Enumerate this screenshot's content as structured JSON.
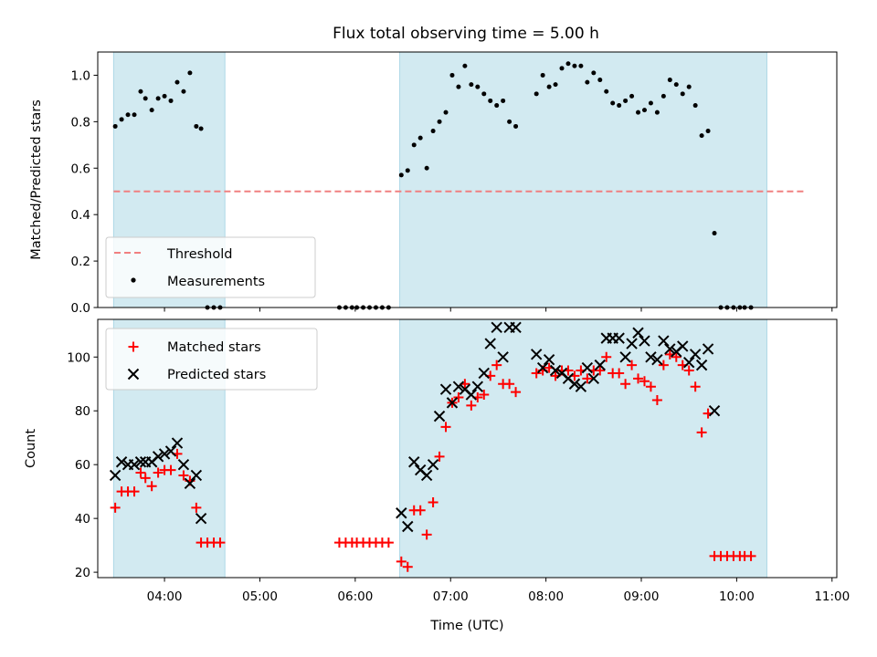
{
  "chart_data": {
    "title": "Flux total observing time = 5.00 h",
    "xlabel": "Time (UTC)",
    "x_ticks": [
      "04:00",
      "05:00",
      "06:00",
      "07:00",
      "08:00",
      "09:00",
      "10:00",
      "11:00"
    ],
    "xlim": [
      "03:18",
      "11:03"
    ],
    "shaded_intervals": [
      [
        "03:28",
        "04:38"
      ],
      [
        "06:28",
        "10:19"
      ]
    ],
    "colors": {
      "shade": "#add8e6",
      "threshold": "#f08080",
      "matched": "#ff0000",
      "predicted": "#000000"
    },
    "panels": [
      {
        "type": "scatter",
        "ylabel": "Matched/Predicted stars",
        "ylim": [
          0,
          1.1
        ],
        "y_ticks": [
          "0.0",
          "0.2",
          "0.4",
          "0.6",
          "0.8",
          "1.0"
        ],
        "grid": false,
        "legend_position": "lower-left",
        "threshold": {
          "name": "Threshold",
          "value": 0.5,
          "x_start": "03:28",
          "x_end": "10:44"
        },
        "series": [
          {
            "name": "Measurements",
            "marker": "dot",
            "points": [
              [
                "03:29",
                0.78
              ],
              [
                "03:33",
                0.81
              ],
              [
                "03:37",
                0.83
              ],
              [
                "03:41",
                0.83
              ],
              [
                "03:45",
                0.93
              ],
              [
                "03:48",
                0.9
              ],
              [
                "03:52",
                0.85
              ],
              [
                "03:56",
                0.9
              ],
              [
                "04:00",
                0.91
              ],
              [
                "04:04",
                0.89
              ],
              [
                "04:08",
                0.97
              ],
              [
                "04:12",
                0.93
              ],
              [
                "04:16",
                1.01
              ],
              [
                "04:20",
                0.78
              ],
              [
                "04:23",
                0.77
              ],
              [
                "04:27",
                0.0
              ],
              [
                "04:31",
                0.0
              ],
              [
                "04:35",
                0.0
              ],
              [
                "05:50",
                0.0
              ],
              [
                "05:54",
                0.0
              ],
              [
                "05:58",
                0.0
              ],
              [
                "06:01",
                0.0
              ],
              [
                "06:05",
                0.0
              ],
              [
                "06:09",
                0.0
              ],
              [
                "06:13",
                0.0
              ],
              [
                "06:17",
                0.0
              ],
              [
                "06:21",
                0.0
              ],
              [
                "06:29",
                0.57
              ],
              [
                "06:33",
                0.59
              ],
              [
                "06:37",
                0.7
              ],
              [
                "06:41",
                0.73
              ],
              [
                "06:45",
                0.6
              ],
              [
                "06:49",
                0.76
              ],
              [
                "06:53",
                0.8
              ],
              [
                "06:57",
                0.84
              ],
              [
                "07:01",
                1.0
              ],
              [
                "07:05",
                0.95
              ],
              [
                "07:09",
                1.04
              ],
              [
                "07:13",
                0.96
              ],
              [
                "07:17",
                0.95
              ],
              [
                "07:21",
                0.92
              ],
              [
                "07:25",
                0.89
              ],
              [
                "07:29",
                0.87
              ],
              [
                "07:33",
                0.89
              ],
              [
                "07:37",
                0.8
              ],
              [
                "07:41",
                0.78
              ],
              [
                "07:54",
                0.92
              ],
              [
                "07:58",
                1.0
              ],
              [
                "08:02",
                0.95
              ],
              [
                "08:06",
                0.96
              ],
              [
                "08:10",
                1.03
              ],
              [
                "08:14",
                1.05
              ],
              [
                "08:18",
                1.04
              ],
              [
                "08:22",
                1.04
              ],
              [
                "08:26",
                0.97
              ],
              [
                "08:30",
                1.01
              ],
              [
                "08:34",
                0.98
              ],
              [
                "08:38",
                0.93
              ],
              [
                "08:42",
                0.88
              ],
              [
                "08:46",
                0.87
              ],
              [
                "08:50",
                0.89
              ],
              [
                "08:54",
                0.91
              ],
              [
                "08:58",
                0.84
              ],
              [
                "09:02",
                0.85
              ],
              [
                "09:06",
                0.88
              ],
              [
                "09:10",
                0.84
              ],
              [
                "09:14",
                0.91
              ],
              [
                "09:18",
                0.98
              ],
              [
                "09:22",
                0.96
              ],
              [
                "09:26",
                0.92
              ],
              [
                "09:30",
                0.95
              ],
              [
                "09:34",
                0.87
              ],
              [
                "09:38",
                0.74
              ],
              [
                "09:42",
                0.76
              ],
              [
                "09:46",
                0.32
              ],
              [
                "09:50",
                0.0
              ],
              [
                "09:54",
                0.0
              ],
              [
                "09:58",
                0.0
              ],
              [
                "10:02",
                0.0
              ],
              [
                "10:05",
                0.0
              ],
              [
                "10:09",
                0.0
              ]
            ]
          }
        ]
      },
      {
        "type": "scatter",
        "ylabel": "Count",
        "ylim": [
          18,
          114
        ],
        "y_ticks": [
          "20",
          "40",
          "60",
          "80",
          "100"
        ],
        "grid": false,
        "legend_position": "upper-left",
        "series": [
          {
            "name": "Matched stars",
            "marker": "plus",
            "points": [
              [
                "03:29",
                44
              ],
              [
                "03:33",
                50
              ],
              [
                "03:37",
                50
              ],
              [
                "03:41",
                50
              ],
              [
                "03:45",
                57
              ],
              [
                "03:48",
                55
              ],
              [
                "03:52",
                52
              ],
              [
                "03:56",
                57
              ],
              [
                "04:00",
                58
              ],
              [
                "04:04",
                58
              ],
              [
                "04:08",
                64
              ],
              [
                "04:12",
                56
              ],
              [
                "04:16",
                54
              ],
              [
                "04:20",
                44
              ],
              [
                "04:23",
                31
              ],
              [
                "04:27",
                31
              ],
              [
                "04:31",
                31
              ],
              [
                "04:35",
                31
              ],
              [
                "05:50",
                31
              ],
              [
                "05:54",
                31
              ],
              [
                "05:58",
                31
              ],
              [
                "06:01",
                31
              ],
              [
                "06:05",
                31
              ],
              [
                "06:09",
                31
              ],
              [
                "06:13",
                31
              ],
              [
                "06:17",
                31
              ],
              [
                "06:21",
                31
              ],
              [
                "06:29",
                24
              ],
              [
                "06:33",
                22
              ],
              [
                "06:37",
                43
              ],
              [
                "06:41",
                43
              ],
              [
                "06:45",
                34
              ],
              [
                "06:49",
                46
              ],
              [
                "06:53",
                63
              ],
              [
                "06:57",
                74
              ],
              [
                "07:01",
                83
              ],
              [
                "07:05",
                85
              ],
              [
                "07:09",
                90
              ],
              [
                "07:13",
                82
              ],
              [
                "07:17",
                85
              ],
              [
                "07:21",
                86
              ],
              [
                "07:25",
                93
              ],
              [
                "07:29",
                97
              ],
              [
                "07:33",
                90
              ],
              [
                "07:37",
                90
              ],
              [
                "07:41",
                87
              ],
              [
                "07:54",
                94
              ],
              [
                "07:58",
                95
              ],
              [
                "08:02",
                96
              ],
              [
                "08:06",
                93
              ],
              [
                "08:10",
                95
              ],
              [
                "08:14",
                95
              ],
              [
                "08:18",
                93
              ],
              [
                "08:22",
                95
              ],
              [
                "08:26",
                92
              ],
              [
                "08:30",
                95
              ],
              [
                "08:34",
                95
              ],
              [
                "08:38",
                100
              ],
              [
                "08:42",
                94
              ],
              [
                "08:46",
                94
              ],
              [
                "08:50",
                90
              ],
              [
                "08:54",
                97
              ],
              [
                "08:58",
                92
              ],
              [
                "09:02",
                91
              ],
              [
                "09:06",
                89
              ],
              [
                "09:10",
                84
              ],
              [
                "09:14",
                97
              ],
              [
                "09:18",
                101
              ],
              [
                "09:22",
                100
              ],
              [
                "09:26",
                97
              ],
              [
                "09:30",
                95
              ],
              [
                "09:34",
                89
              ],
              [
                "09:38",
                72
              ],
              [
                "09:42",
                79
              ],
              [
                "09:46",
                26
              ],
              [
                "09:50",
                26
              ],
              [
                "09:54",
                26
              ],
              [
                "09:58",
                26
              ],
              [
                "10:02",
                26
              ],
              [
                "10:05",
                26
              ],
              [
                "10:09",
                26
              ]
            ]
          },
          {
            "name": "Predicted stars",
            "marker": "x",
            "points": [
              [
                "03:29",
                56
              ],
              [
                "03:33",
                61
              ],
              [
                "03:37",
                60
              ],
              [
                "03:41",
                60
              ],
              [
                "03:45",
                61
              ],
              [
                "03:48",
                61
              ],
              [
                "03:52",
                61
              ],
              [
                "03:56",
                63
              ],
              [
                "04:00",
                64
              ],
              [
                "04:04",
                65
              ],
              [
                "04:08",
                68
              ],
              [
                "04:12",
                60
              ],
              [
                "04:16",
                53
              ],
              [
                "04:20",
                56
              ],
              [
                "04:23",
                40
              ],
              [
                "06:29",
                42
              ],
              [
                "06:33",
                37
              ],
              [
                "06:37",
                61
              ],
              [
                "06:41",
                58
              ],
              [
                "06:45",
                56
              ],
              [
                "06:49",
                60
              ],
              [
                "06:53",
                78
              ],
              [
                "06:57",
                88
              ],
              [
                "07:01",
                83
              ],
              [
                "07:05",
                89
              ],
              [
                "07:09",
                88
              ],
              [
                "07:13",
                86
              ],
              [
                "07:17",
                89
              ],
              [
                "07:21",
                94
              ],
              [
                "07:25",
                105
              ],
              [
                "07:29",
                111
              ],
              [
                "07:33",
                100
              ],
              [
                "07:37",
                111
              ],
              [
                "07:41",
                111
              ],
              [
                "07:54",
                101
              ],
              [
                "07:58",
                96
              ],
              [
                "08:02",
                99
              ],
              [
                "08:06",
                95
              ],
              [
                "08:10",
                94
              ],
              [
                "08:14",
                92
              ],
              [
                "08:18",
                90
              ],
              [
                "08:22",
                89
              ],
              [
                "08:26",
                96
              ],
              [
                "08:30",
                92
              ],
              [
                "08:34",
                97
              ],
              [
                "08:38",
                107
              ],
              [
                "08:42",
                107
              ],
              [
                "08:46",
                107
              ],
              [
                "08:50",
                100
              ],
              [
                "08:54",
                105
              ],
              [
                "08:58",
                109
              ],
              [
                "09:02",
                106
              ],
              [
                "09:06",
                100
              ],
              [
                "09:10",
                99
              ],
              [
                "09:14",
                106
              ],
              [
                "09:18",
                103
              ],
              [
                "09:22",
                102
              ],
              [
                "09:26",
                104
              ],
              [
                "09:30",
                98
              ],
              [
                "09:34",
                101
              ],
              [
                "09:38",
                97
              ],
              [
                "09:42",
                103
              ],
              [
                "09:46",
                80
              ]
            ]
          }
        ]
      }
    ]
  }
}
